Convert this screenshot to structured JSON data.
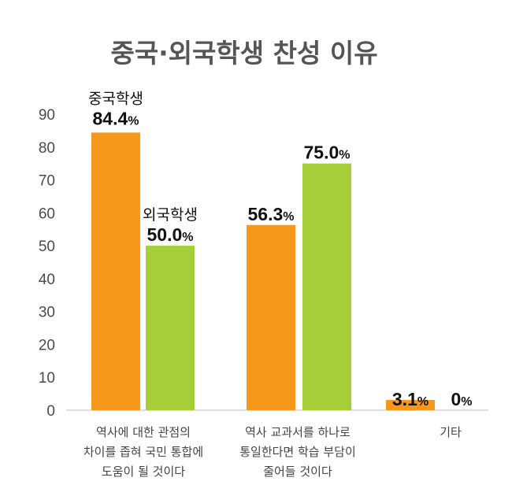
{
  "chart_data": {
    "type": "bar",
    "title": "중국·외국학생 찬성 이유",
    "categories": [
      [
        "역사에 대한 관점의",
        "차이를 좁혀 국민 통합에",
        "도움이 될 것이다"
      ],
      [
        "역사 교과서를 하나로",
        "통일한다면 학습 부담이",
        "줄어들 것이다"
      ],
      [
        "기타"
      ]
    ],
    "series": [
      {
        "name": "중국학생",
        "values": [
          84.4,
          56.3,
          3.1
        ],
        "labels": [
          "84.4%",
          "56.3%",
          "3.1%"
        ],
        "color": "#F7981D"
      },
      {
        "name": "외국학생",
        "values": [
          50.0,
          75.0,
          0
        ],
        "labels": [
          "50.0%",
          "75.0%",
          "0%"
        ],
        "color": "#A6CE39"
      }
    ],
    "yticks": [
      0,
      10,
      20,
      30,
      40,
      50,
      60,
      70,
      80,
      90
    ],
    "ylim": [
      0,
      90
    ],
    "xlabel": "",
    "ylabel": "",
    "grid": false,
    "legend": "inline labels above first group bars"
  }
}
